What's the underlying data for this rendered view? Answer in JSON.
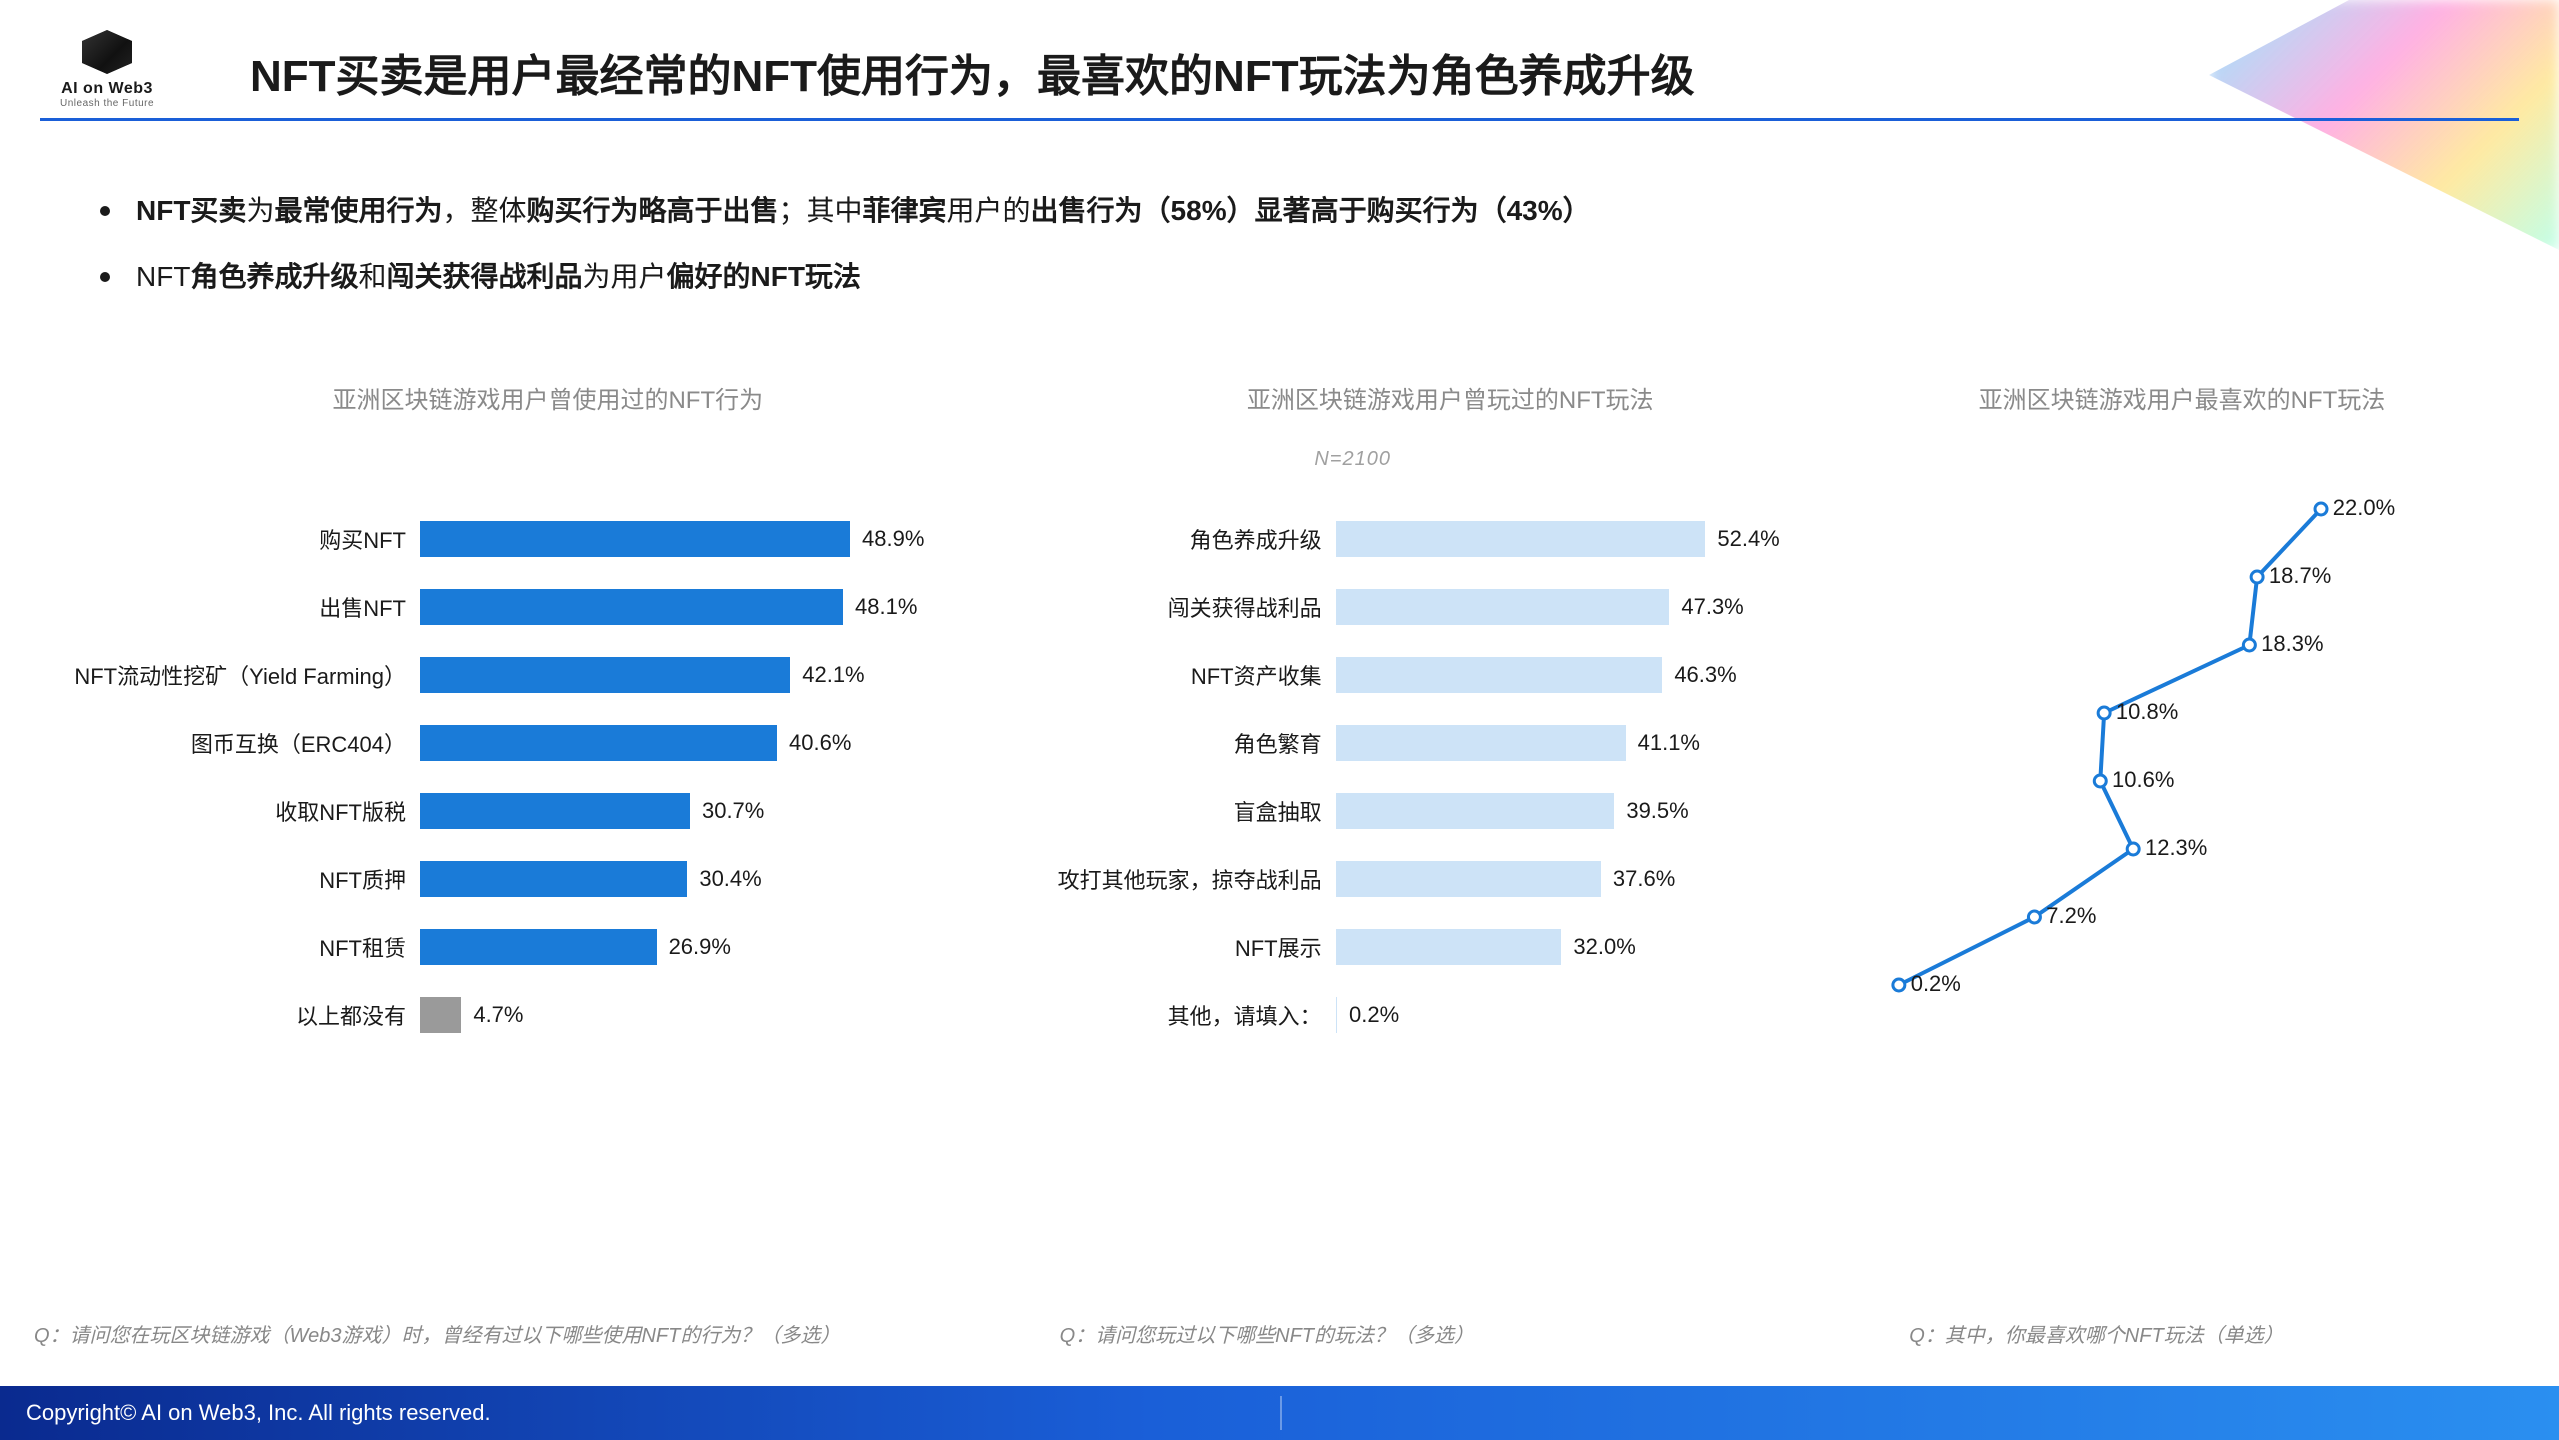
{
  "logo": {
    "line1": "AI on Web3",
    "line2": "Unleash the Future"
  },
  "title": "NFT买卖是用户最经常的NFT使用行为，最喜欢的NFT玩法为角色养成升级",
  "bullets": [
    {
      "pre": "",
      "b1": "NFT买卖",
      "m1": "为",
      "b2": "最常使用行为",
      "m2": "，整体",
      "b3": "购买行为略高于出售",
      "m3": "；其中",
      "b4": "菲律宾",
      "m4": "用户的",
      "b5": "出售行为（58%）显著高于购买行为（43%）",
      "post": ""
    },
    {
      "pre": "NFT",
      "b1": "角色养成升级",
      "m1": "和",
      "b2": "闯关获得战利品",
      "m2": "为用户",
      "b3": "偏好的NFT玩法",
      "m3": "",
      "b4": "",
      "m4": "",
      "b5": "",
      "post": ""
    }
  ],
  "n_label": "N=2100",
  "panel1": {
    "title": "亚洲区块链游戏用户曾使用过的NFT行为",
    "type": "bar",
    "xmax_pct": 70,
    "bar_color": "#1a7bd8",
    "alt_bar_color": "#9a9a9a",
    "label_fontsize": 22,
    "value_fontsize": 22,
    "items": [
      {
        "label": "购买NFT",
        "value": 48.9
      },
      {
        "label": "出售NFT",
        "value": 48.1
      },
      {
        "label": "NFT流动性挖矿（Yield Farming）",
        "value": 42.1
      },
      {
        "label": "图币互换（ERC404）",
        "value": 40.6
      },
      {
        "label": "收取NFT版税",
        "value": 30.7
      },
      {
        "label": "NFT质押",
        "value": 30.4
      },
      {
        "label": "NFT租赁",
        "value": 26.9
      },
      {
        "label": "以上都没有",
        "value": 4.7,
        "alt_color": true
      }
    ],
    "question": "Q：请问您在玩区块链游戏（Web3游戏）时，曾经有过以下哪些使用NFT的行为？（多选）"
  },
  "panel2": {
    "title": "亚洲区块链游戏用户曾玩过的NFT玩法",
    "type": "bar",
    "xmax_pct": 75,
    "bar_color": "#cde3f7",
    "label_fontsize": 22,
    "value_fontsize": 22,
    "items": [
      {
        "label": "角色养成升级",
        "value": 52.4
      },
      {
        "label": "闯关获得战利品",
        "value": 47.3
      },
      {
        "label": "NFT资产收集",
        "value": 46.3
      },
      {
        "label": "角色繁育",
        "value": 41.1
      },
      {
        "label": "盲盒抽取",
        "value": 39.5
      },
      {
        "label": "攻打其他玩家，掠夺战利品",
        "value": 37.6
      },
      {
        "label": "NFT展示",
        "value": 32.0
      },
      {
        "label": "其他，请填入：",
        "value": 0.2
      }
    ],
    "question": "Q：请问您玩过以下哪些NFT的玩法？（多选）"
  },
  "panel3": {
    "title": "亚洲区块链游戏用户最喜欢的NFT玩法",
    "type": "line",
    "xmax_pct": 25,
    "line_color": "#1a7bd8",
    "marker_fill": "#ffffff",
    "marker_stroke": "#1a7bd8",
    "marker_radius": 6,
    "line_width": 4,
    "points": [
      22.0,
      18.7,
      18.3,
      10.8,
      10.6,
      12.3,
      7.2,
      0.2
    ],
    "question": "Q：其中，你最喜欢哪个NFT玩法（单选）"
  },
  "footer": "Copyright© AI on Web3, Inc. All rights reserved.",
  "colors": {
    "title_underline": "#1a5fd8",
    "subtitle_gray": "#8a8a8a",
    "text": "#1a1a1a",
    "footer_grad_from": "#0a2a8f",
    "footer_grad_to": "#2a8ff0",
    "background": "#ffffff"
  }
}
